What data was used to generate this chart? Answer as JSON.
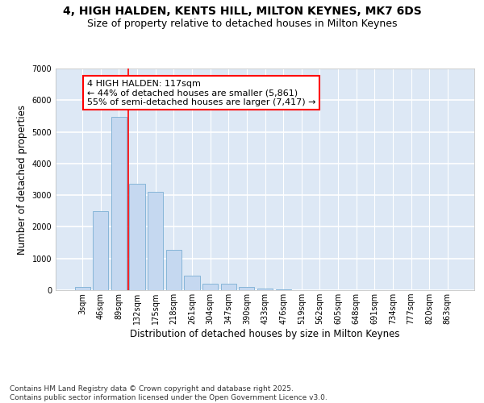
{
  "title_line1": "4, HIGH HALDEN, KENTS HILL, MILTON KEYNES, MK7 6DS",
  "title_line2": "Size of property relative to detached houses in Milton Keynes",
  "xlabel": "Distribution of detached houses by size in Milton Keynes",
  "ylabel": "Number of detached properties",
  "categories": [
    "3sqm",
    "46sqm",
    "89sqm",
    "132sqm",
    "175sqm",
    "218sqm",
    "261sqm",
    "304sqm",
    "347sqm",
    "390sqm",
    "433sqm",
    "476sqm",
    "519sqm",
    "562sqm",
    "605sqm",
    "648sqm",
    "691sqm",
    "734sqm",
    "777sqm",
    "820sqm",
    "863sqm"
  ],
  "values": [
    100,
    2500,
    5480,
    3350,
    3100,
    1280,
    470,
    210,
    200,
    95,
    50,
    20,
    5,
    0,
    0,
    0,
    0,
    0,
    0,
    0,
    0
  ],
  "bar_color": "#c5d8f0",
  "bar_edge_color": "#7bafd4",
  "vline_color": "red",
  "vline_x": 2.5,
  "annotation_text": "4 HIGH HALDEN: 117sqm\n← 44% of detached houses are smaller (5,861)\n55% of semi-detached houses are larger (7,417) →",
  "ylim_max": 7000,
  "yticks": [
    0,
    1000,
    2000,
    3000,
    4000,
    5000,
    6000,
    7000
  ],
  "background_color": "#dde8f5",
  "grid_color": "#ffffff",
  "footnote": "Contains HM Land Registry data © Crown copyright and database right 2025.\nContains public sector information licensed under the Open Government Licence v3.0.",
  "title_fontsize": 10,
  "subtitle_fontsize": 9,
  "axis_label_fontsize": 8.5,
  "tick_fontsize": 7,
  "annotation_fontsize": 8,
  "footnote_fontsize": 6.5
}
